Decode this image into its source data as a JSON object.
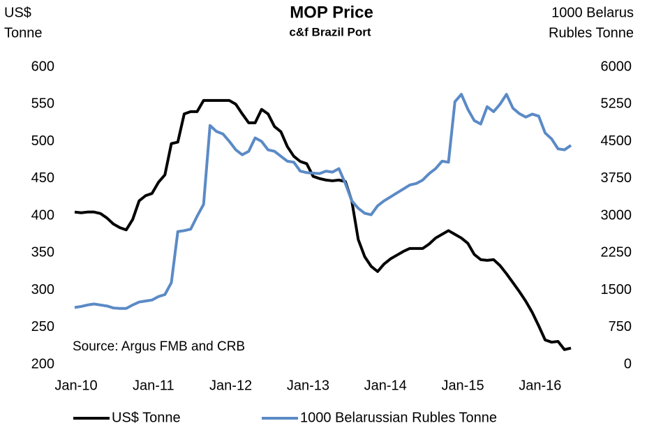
{
  "chart_data": {
    "type": "line",
    "title": "MOP Price",
    "subtitle": "c&f Brazil Port",
    "y_label": [
      "US$",
      "Tonne"
    ],
    "y2_label": [
      "1000 Belarus",
      "Rubles Tonne"
    ],
    "annotation": "Source:  Argus FMB and CRB",
    "categories": [
      "Jan-10",
      null,
      null,
      null,
      null,
      null,
      null,
      null,
      null,
      null,
      null,
      null,
      "Jan-11",
      null,
      null,
      null,
      null,
      null,
      null,
      null,
      null,
      null,
      null,
      null,
      "Jan-12",
      null,
      null,
      null,
      null,
      null,
      null,
      null,
      null,
      null,
      null,
      null,
      "Jan-13",
      null,
      null,
      null,
      null,
      null,
      null,
      null,
      null,
      null,
      null,
      null,
      "Jan-14",
      null,
      null,
      null,
      null,
      null,
      null,
      null,
      null,
      null,
      null,
      null,
      "Jan-15",
      null,
      null,
      null,
      null,
      null,
      null,
      null,
      null,
      null,
      null,
      null,
      "Jan-16",
      null,
      null,
      null,
      null,
      null
    ],
    "series": [
      {
        "name": "US$ Tonne",
        "color": "#000000",
        "axis": "y",
        "values": [
          405,
          404,
          405,
          405,
          403,
          397,
          389,
          384,
          381,
          395,
          420,
          427,
          430,
          445,
          455,
          497,
          499,
          537,
          540,
          540,
          555,
          555,
          555,
          555,
          555,
          550,
          537,
          525,
          525,
          543,
          537,
          520,
          513,
          493,
          480,
          473,
          470,
          453,
          450,
          448,
          447,
          448,
          446,
          420,
          368,
          345,
          332,
          325,
          335,
          342,
          347,
          352,
          356,
          356,
          356,
          362,
          370,
          375,
          380,
          375,
          370,
          363,
          348,
          341,
          340,
          341,
          333,
          322,
          310,
          298,
          285,
          270,
          252,
          233,
          230,
          231,
          220,
          222
        ]
      },
      {
        "name": "1000 Belarussian Rubles Tonne",
        "color": "#5b8ac6",
        "axis": "y2",
        "values": [
          1150,
          1170,
          1200,
          1220,
          1200,
          1180,
          1140,
          1130,
          1130,
          1200,
          1260,
          1280,
          1300,
          1370,
          1410,
          1650,
          2680,
          2700,
          2730,
          2990,
          3230,
          4820,
          4700,
          4650,
          4500,
          4330,
          4230,
          4300,
          4570,
          4500,
          4330,
          4300,
          4200,
          4100,
          4080,
          3900,
          3870,
          3860,
          3850,
          3900,
          3880,
          3950,
          3650,
          3300,
          3150,
          3050,
          3020,
          3200,
          3300,
          3380,
          3460,
          3540,
          3620,
          3650,
          3720,
          3850,
          3950,
          4100,
          4080,
          5300,
          5450,
          5150,
          4920,
          4850,
          5200,
          5100,
          5250,
          5450,
          5170,
          5060,
          4990,
          5050,
          5010,
          4670,
          4550,
          4350,
          4330,
          4420
        ]
      }
    ],
    "ylim": [
      200,
      600
    ],
    "yticks": [
      200,
      250,
      300,
      350,
      400,
      450,
      500,
      550,
      600
    ],
    "y2lim": [
      0,
      6000
    ],
    "y2ticks": [
      0,
      750,
      1500,
      2250,
      3000,
      3750,
      4500,
      5250,
      6000
    ],
    "grid": false,
    "legend": "bottom"
  }
}
